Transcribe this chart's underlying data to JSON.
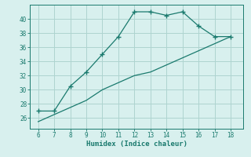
{
  "xlabel": "Humidex (Indice chaleur)",
  "x": [
    6,
    7,
    8,
    9,
    10,
    11,
    12,
    13,
    14,
    15,
    16,
    17,
    18
  ],
  "line1": [
    27,
    27,
    30.5,
    32.5,
    35,
    37.5,
    41,
    41,
    40.5,
    41,
    39,
    37.5,
    37.5
  ],
  "line2": [
    25.5,
    26.5,
    27.5,
    28.5,
    30.0,
    31.0,
    32.0,
    32.5,
    33.5,
    34.5,
    35.5,
    36.5,
    37.5
  ],
  "line_color": "#1a7a6e",
  "bg_color": "#d8f0ee",
  "grid_color": "#aed4d0",
  "ylim": [
    24.5,
    42
  ],
  "yticks": [
    26,
    28,
    30,
    32,
    34,
    36,
    38,
    40
  ],
  "xlim": [
    5.5,
    18.8
  ],
  "xticks": [
    6,
    7,
    8,
    9,
    10,
    11,
    12,
    13,
    14,
    15,
    16,
    17,
    18
  ]
}
